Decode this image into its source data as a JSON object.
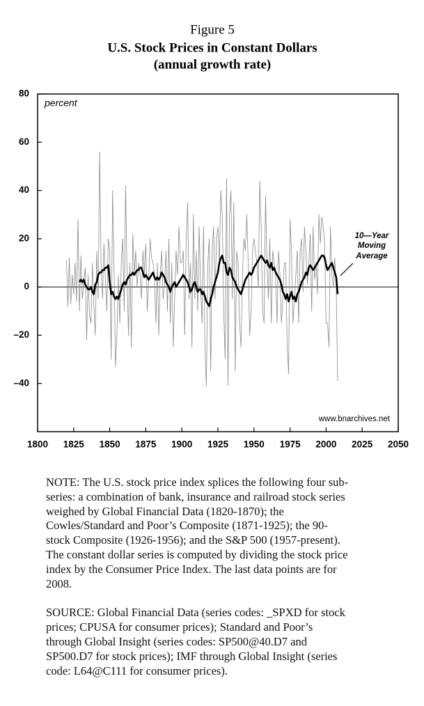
{
  "chart_data": {
    "type": "line",
    "figure_label": "Figure 5",
    "title": "U.S. Stock Prices in Constant Dollars",
    "subtitle": "(annual growth rate)",
    "y_unit_label": "percent",
    "source_url": "www.bnarchives.net",
    "annotation": [
      "10—Year",
      "Moving",
      "Average"
    ],
    "xlim": [
      1800,
      2050
    ],
    "xticks": [
      1800,
      1825,
      1850,
      1875,
      1900,
      1925,
      1950,
      1975,
      2000,
      2025,
      2050
    ],
    "ylim": [
      -60,
      80
    ],
    "yticks": [
      80,
      60,
      40,
      20,
      {
        "value": 0,
        "label": "0"
      },
      {
        "value": -20,
        "label": "–20"
      },
      {
        "value": -40,
        "label": "–40"
      }
    ],
    "zero_line": true,
    "x": [
      1820,
      1821,
      1822,
      1823,
      1824,
      1825,
      1826,
      1827,
      1828,
      1829,
      1830,
      1831,
      1832,
      1833,
      1834,
      1835,
      1836,
      1837,
      1838,
      1839,
      1840,
      1841,
      1842,
      1843,
      1844,
      1845,
      1846,
      1847,
      1848,
      1849,
      1850,
      1851,
      1852,
      1853,
      1854,
      1855,
      1856,
      1857,
      1858,
      1859,
      1860,
      1861,
      1862,
      1863,
      1864,
      1865,
      1866,
      1867,
      1868,
      1869,
      1870,
      1871,
      1872,
      1873,
      1874,
      1875,
      1876,
      1877,
      1878,
      1879,
      1880,
      1881,
      1882,
      1883,
      1884,
      1885,
      1886,
      1887,
      1888,
      1889,
      1890,
      1891,
      1892,
      1893,
      1894,
      1895,
      1896,
      1897,
      1898,
      1899,
      1900,
      1901,
      1902,
      1903,
      1904,
      1905,
      1906,
      1907,
      1908,
      1909,
      1910,
      1911,
      1912,
      1913,
      1914,
      1915,
      1916,
      1917,
      1918,
      1919,
      1920,
      1921,
      1922,
      1923,
      1924,
      1925,
      1926,
      1927,
      1928,
      1929,
      1930,
      1931,
      1932,
      1933,
      1934,
      1935,
      1936,
      1937,
      1938,
      1939,
      1940,
      1941,
      1942,
      1943,
      1944,
      1945,
      1946,
      1947,
      1948,
      1949,
      1950,
      1951,
      1952,
      1953,
      1954,
      1955,
      1956,
      1957,
      1958,
      1959,
      1960,
      1961,
      1962,
      1963,
      1964,
      1965,
      1966,
      1967,
      1968,
      1969,
      1970,
      1971,
      1972,
      1973,
      1974,
      1975,
      1976,
      1977,
      1978,
      1979,
      1980,
      1981,
      1982,
      1983,
      1984,
      1985,
      1986,
      1987,
      1988,
      1989,
      1990,
      1991,
      1992,
      1993,
      1994,
      1995,
      1996,
      1997,
      1998,
      1999,
      2000,
      2001,
      2002,
      2003,
      2004,
      2005,
      2006,
      2007,
      2008
    ],
    "series": [
      {
        "color": "#8a8a8a",
        "width": 0.8,
        "values": [
          11,
          -8,
          12,
          -7,
          5,
          -3,
          10,
          -6,
          28,
          -10,
          13,
          -5,
          2,
          8,
          -22,
          5,
          -12,
          -15,
          10,
          -8,
          -20,
          15,
          -5,
          56,
          10,
          -5,
          18,
          3,
          -10,
          20,
          15,
          -30,
          40,
          8,
          -33,
          -20,
          5,
          -15,
          10,
          20,
          -10,
          42,
          5,
          -20,
          10,
          -25,
          22,
          5,
          15,
          0,
          10,
          5,
          -5,
          15,
          5,
          18,
          -10,
          3,
          20,
          12,
          10,
          5,
          -15,
          10,
          -20,
          5,
          15,
          -5,
          0,
          15,
          -10,
          20,
          -15,
          10,
          -25,
          -5,
          15,
          5,
          25,
          10,
          10,
          15,
          -20,
          20,
          35,
          -5,
          10,
          -25,
          30,
          -5,
          15,
          -10,
          25,
          0,
          -15,
          25,
          -25,
          -41,
          10,
          20,
          -35,
          15,
          25,
          -5,
          20,
          25,
          10,
          40,
          30,
          -10,
          -30,
          45,
          -41,
          30,
          40,
          -5,
          35,
          -35,
          15,
          10,
          -15,
          -25,
          5,
          20,
          15,
          30,
          10,
          -20,
          -10,
          15,
          20,
          15,
          10,
          0,
          44,
          25,
          -10,
          -15,
          38,
          10,
          -5,
          20,
          -15,
          15,
          10,
          5,
          -15,
          15,
          5,
          -15,
          -5,
          10,
          10,
          -25,
          -36,
          28,
          15,
          -15,
          -5,
          5,
          15,
          -15,
          15,
          20,
          -2,
          25,
          15,
          1,
          10,
          22,
          -10,
          25,
          3,
          10,
          -3,
          30,
          18,
          29,
          25,
          18,
          -15,
          -15,
          -25,
          25,
          5,
          0,
          12,
          0,
          -39
        ]
      },
      {
        "color": "#000000",
        "width": 2.6,
        "values": [
          null,
          null,
          null,
          null,
          null,
          null,
          null,
          null,
          null,
          2,
          3,
          2,
          3,
          1,
          0,
          -1,
          -1,
          0,
          -2,
          -3,
          1,
          2,
          5,
          6,
          6,
          7,
          7,
          8,
          8,
          9,
          2,
          -3,
          -2,
          -4,
          -5,
          -4,
          -5,
          -3,
          -1,
          1,
          2,
          1,
          3,
          4,
          5,
          5,
          6,
          5,
          6,
          7,
          7,
          8,
          8,
          6,
          4,
          5,
          4,
          3,
          4,
          5,
          6,
          4,
          3,
          4,
          3,
          4,
          6,
          5,
          4,
          2,
          1,
          0,
          -2,
          0,
          1,
          2,
          0,
          1,
          2,
          3,
          4,
          5,
          4,
          3,
          2,
          0,
          -2,
          -1,
          1,
          2,
          0,
          -2,
          -1,
          -1,
          -3,
          -2,
          -4,
          -6,
          -7,
          -8,
          -5,
          -3,
          0,
          2,
          4,
          6,
          10,
          12,
          13,
          10,
          10,
          6,
          5,
          8,
          7,
          4,
          3,
          2,
          0,
          -1,
          -2,
          -3,
          -1,
          1,
          3,
          4,
          5,
          6,
          5,
          6,
          8,
          9,
          10,
          11,
          12,
          13,
          12,
          11,
          10,
          11,
          9,
          8,
          10,
          7,
          8,
          6,
          5,
          4,
          3,
          1,
          -2,
          -3,
          -5,
          -3,
          -6,
          -4,
          -2,
          -5,
          -4,
          -6,
          -3,
          -2,
          0,
          2,
          3,
          4,
          6,
          5,
          8,
          9,
          8,
          7,
          8,
          9,
          10,
          11,
          12,
          13,
          13,
          12,
          9,
          7,
          8,
          9,
          10,
          8,
          6,
          4,
          -3
        ]
      }
    ]
  },
  "notes": {
    "note": [
      "NOTE: The U.S. stock price index splices the following four sub-",
      "series: a combination of bank, insurance and railroad stock series",
      "weighed by Global Financial Data (1820-1870); the",
      "Cowles/Standard and Poor’s Composite (1871-1925); the 90-",
      "stock Composite (1926-1956); and the S&P 500 (1957-present).",
      "The constant dollar series is computed by dividing the stock price",
      "index by the Consumer Price Index. The last data points are for",
      "2008."
    ],
    "source": [
      "SOURCE: Global Financial Data (series codes: _SPXD for stock",
      "prices; CPUSA for consumer prices); Standard and Poor’s",
      "through Global Insight (series codes: SP500@40.D7 and",
      "SP500.D7 for stock prices); IMF through Global Insight (series",
      "code: L64@C111 for consumer prices)."
    ]
  }
}
